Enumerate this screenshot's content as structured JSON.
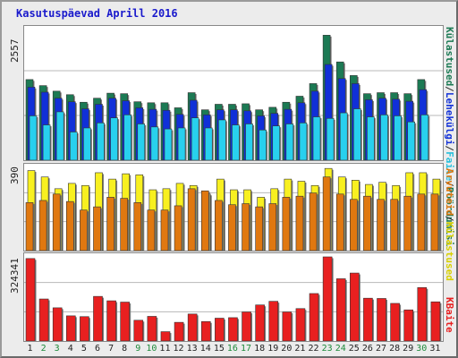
{
  "title": "Kasutuspäevad Aprill 2016",
  "colors": {
    "visits": "#1c7a54",
    "pages": "#1030d8",
    "files": "#28d0ee",
    "hosts": "#f8f020",
    "kbytes": "#e82020",
    "sites_label": "#e07810"
  },
  "labels": {
    "top": [
      "Külastused",
      "Lehekülgi",
      "Faile",
      "Pöördumisi"
    ],
    "mid": [
      "Arvuteid",
      "Külastused"
    ],
    "bot": [
      "KBaite"
    ]
  },
  "chart_data": [
    {
      "type": "bar",
      "ymax_label": "2557",
      "ylim": [
        0,
        2557
      ],
      "categories": [
        "1",
        "2",
        "3",
        "4",
        "5",
        "6",
        "7",
        "8",
        "9",
        "10",
        "11",
        "12",
        "13",
        "14",
        "15",
        "16",
        "17",
        "18",
        "19",
        "20",
        "21",
        "22",
        "23",
        "24",
        "25",
        "26",
        "27",
        "28",
        "29",
        "30",
        "31"
      ],
      "series": [
        {
          "name": "Pöördumisi",
          "values": [
            1600,
            1480,
            1370,
            1300,
            1150,
            1230,
            1330,
            1320,
            1160,
            1140,
            1140,
            1040,
            1340,
            1000,
            1110,
            1110,
            1120,
            1000,
            1050,
            1150,
            1270,
            1520,
            2480,
            1950,
            1680,
            1320,
            1340,
            1340,
            1320,
            1600,
            0
          ]
        },
        {
          "name": "Faile",
          "values": [
            1450,
            1350,
            1230,
            1160,
            1020,
            1110,
            1230,
            1180,
            1040,
            1010,
            990,
            910,
            1190,
            900,
            1000,
            1000,
            980,
            880,
            930,
            1010,
            1140,
            1370,
            1900,
            1620,
            1520,
            1200,
            1230,
            1210,
            1170,
            1400,
            0
          ]
        },
        {
          "name": "Lehekülgi",
          "values": [
            880,
            700,
            960,
            560,
            640,
            740,
            840,
            900,
            720,
            660,
            620,
            640,
            840,
            640,
            800,
            700,
            720,
            600,
            680,
            720,
            740,
            860,
            830,
            940,
            1020,
            860,
            900,
            880,
            760,
            900,
            0
          ]
        },
        {
          "name": "Külastused",
          "values": [
            1600,
            1480,
            1370,
            1300,
            1150,
            1230,
            1330,
            1320,
            1160,
            1140,
            1140,
            1040,
            1340,
            1000,
            1110,
            1110,
            1120,
            1000,
            1050,
            1150,
            1270,
            1520,
            2480,
            1950,
            1680,
            1320,
            1340,
            1340,
            1320,
            1600,
            0
          ]
        }
      ]
    },
    {
      "type": "bar",
      "ymax_label": "390",
      "ylim": [
        0,
        390
      ],
      "categories": [
        "1",
        "2",
        "3",
        "4",
        "5",
        "6",
        "7",
        "8",
        "9",
        "10",
        "11",
        "12",
        "13",
        "14",
        "15",
        "16",
        "17",
        "18",
        "19",
        "20",
        "21",
        "22",
        "23",
        "24",
        "25",
        "26",
        "27",
        "28",
        "29",
        "30",
        "31"
      ],
      "series": [
        {
          "name": "Külastused",
          "values": [
            375,
            345,
            290,
            315,
            305,
            365,
            335,
            360,
            355,
            285,
            290,
            315,
            305,
            265,
            335,
            285,
            285,
            250,
            290,
            335,
            325,
            305,
            385,
            345,
            330,
            310,
            320,
            305,
            365,
            365,
            335
          ]
        },
        {
          "name": "Arvuteid",
          "values": [
            225,
            235,
            265,
            230,
            190,
            205,
            250,
            245,
            225,
            190,
            190,
            210,
            290,
            280,
            235,
            215,
            220,
            205,
            220,
            250,
            255,
            270,
            345,
            265,
            240,
            255,
            240,
            240,
            255,
            265,
            265
          ]
        }
      ]
    },
    {
      "type": "bar",
      "ymax_label": "324341",
      "ylim": [
        0,
        324341
      ],
      "categories": [
        "1",
        "2",
        "3",
        "4",
        "5",
        "6",
        "7",
        "8",
        "9",
        "10",
        "11",
        "12",
        "13",
        "14",
        "15",
        "16",
        "17",
        "18",
        "19",
        "20",
        "21",
        "22",
        "23",
        "24",
        "25",
        "26",
        "27",
        "28",
        "29",
        "30",
        "31"
      ],
      "series": [
        {
          "name": "KBaite",
          "values": [
            318000,
            162000,
            128000,
            97000,
            94000,
            172000,
            155000,
            150000,
            80000,
            95000,
            36000,
            72000,
            104000,
            75000,
            88000,
            90000,
            112000,
            139000,
            153000,
            112000,
            125000,
            183000,
            324341,
            240000,
            262000,
            165000,
            164000,
            145000,
            120000,
            206000,
            151000
          ]
        }
      ]
    }
  ],
  "days": [
    {
      "d": "1",
      "we": false
    },
    {
      "d": "2",
      "we": true
    },
    {
      "d": "3",
      "we": true
    },
    {
      "d": "4",
      "we": false
    },
    {
      "d": "5",
      "we": false
    },
    {
      "d": "6",
      "we": false
    },
    {
      "d": "7",
      "we": false
    },
    {
      "d": "8",
      "we": false
    },
    {
      "d": "9",
      "we": true
    },
    {
      "d": "10",
      "we": true
    },
    {
      "d": "11",
      "we": false
    },
    {
      "d": "12",
      "we": false
    },
    {
      "d": "13",
      "we": false
    },
    {
      "d": "14",
      "we": false
    },
    {
      "d": "15",
      "we": false
    },
    {
      "d": "16",
      "we": true
    },
    {
      "d": "17",
      "we": true
    },
    {
      "d": "18",
      "we": false
    },
    {
      "d": "19",
      "we": false
    },
    {
      "d": "20",
      "we": false
    },
    {
      "d": "21",
      "we": false
    },
    {
      "d": "22",
      "we": false
    },
    {
      "d": "23",
      "we": true
    },
    {
      "d": "24",
      "we": true
    },
    {
      "d": "25",
      "we": false
    },
    {
      "d": "26",
      "we": false
    },
    {
      "d": "27",
      "we": false
    },
    {
      "d": "28",
      "we": false
    },
    {
      "d": "29",
      "we": false
    },
    {
      "d": "30",
      "we": true
    },
    {
      "d": "31",
      "we": false
    }
  ]
}
